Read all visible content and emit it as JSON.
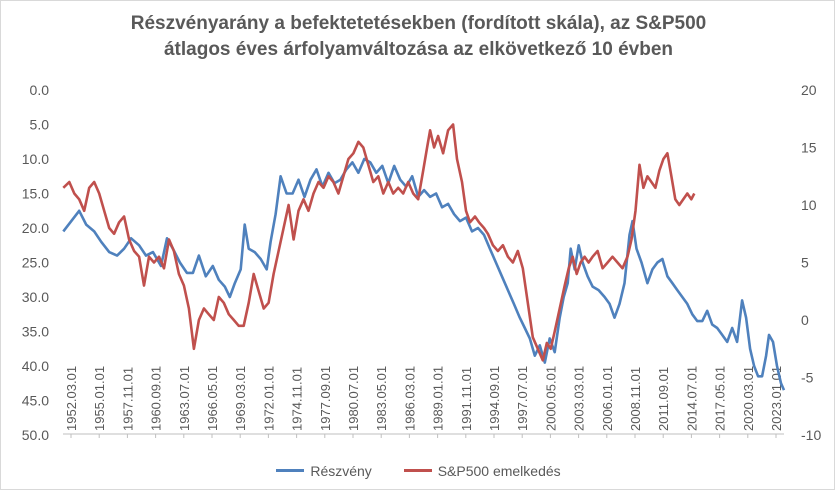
{
  "chart_data": {
    "type": "line",
    "title_line1": "Részvényarány a befektetetésekben (fordított skála),  az S&P500",
    "title_line2": "átlagos éves árfolyamváltozása az elkövetkező 10 évben",
    "x_ticks": [
      "1952.03.01",
      "1955.01.01",
      "1957.11.01",
      "1960.09.01",
      "1963.07.01",
      "1966.05.01",
      "1969.03.01",
      "1972.01.01",
      "1974.11.01",
      "1977.09.01",
      "1980.07.01",
      "1983.05.01",
      "1986.03.01",
      "1989.01.01",
      "1991.11.01",
      "1994.09.01",
      "1997.07.01",
      "2000.05.01",
      "2003.03.01",
      "2006.01.01",
      "2008.11.01",
      "2011.09.01",
      "2014.07.01",
      "2017.05.01",
      "2020.03.01",
      "2023.01.01"
    ],
    "x_range": [
      1952.17,
      2024.5
    ],
    "y_left": {
      "ticks": [
        "0.0",
        "5.0",
        "10.0",
        "15.0",
        "20.0",
        "25.0",
        "30.0",
        "35.0",
        "40.0",
        "45.0",
        "50.0"
      ],
      "range": [
        0,
        50
      ],
      "inverted": true
    },
    "y_right": {
      "ticks": [
        "20",
        "15",
        "10",
        "5",
        "0",
        "-5",
        "-10"
      ],
      "range": [
        -10,
        20
      ]
    },
    "grid": false,
    "legend_position": "bottom",
    "series": [
      {
        "name": "Részvény",
        "axis": "left",
        "color": "#4f81bd",
        "points": [
          [
            1952.2,
            20.5
          ],
          [
            1953.0,
            19.0
          ],
          [
            1953.8,
            17.5
          ],
          [
            1954.5,
            19.5
          ],
          [
            1955.3,
            20.5
          ],
          [
            1956.0,
            22.0
          ],
          [
            1956.8,
            23.5
          ],
          [
            1957.6,
            24.0
          ],
          [
            1958.3,
            23.0
          ],
          [
            1959.0,
            21.5
          ],
          [
            1959.8,
            22.5
          ],
          [
            1960.5,
            24.0
          ],
          [
            1961.2,
            23.5
          ],
          [
            1962.0,
            25.5
          ],
          [
            1962.6,
            21.5
          ],
          [
            1963.2,
            23.0
          ],
          [
            1963.9,
            25.0
          ],
          [
            1964.6,
            26.5
          ],
          [
            1965.2,
            26.5
          ],
          [
            1965.8,
            24.0
          ],
          [
            1966.5,
            27.0
          ],
          [
            1967.2,
            25.5
          ],
          [
            1967.8,
            27.5
          ],
          [
            1968.4,
            28.5
          ],
          [
            1968.9,
            30.0
          ],
          [
            1969.4,
            28.0
          ],
          [
            1970.0,
            26.0
          ],
          [
            1970.4,
            19.5
          ],
          [
            1970.8,
            23.0
          ],
          [
            1971.4,
            23.5
          ],
          [
            1972.0,
            24.5
          ],
          [
            1972.6,
            26.0
          ],
          [
            1973.0,
            22.0
          ],
          [
            1973.5,
            18.0
          ],
          [
            1974.0,
            12.5
          ],
          [
            1974.6,
            15.0
          ],
          [
            1975.2,
            15.0
          ],
          [
            1975.8,
            13.0
          ],
          [
            1976.4,
            15.5
          ],
          [
            1977.0,
            13.0
          ],
          [
            1977.6,
            11.5
          ],
          [
            1978.2,
            14.0
          ],
          [
            1978.8,
            12.0
          ],
          [
            1979.4,
            13.5
          ],
          [
            1980.0,
            13.0
          ],
          [
            1980.6,
            11.5
          ],
          [
            1981.2,
            10.5
          ],
          [
            1981.8,
            12.0
          ],
          [
            1982.4,
            10.0
          ],
          [
            1983.0,
            10.5
          ],
          [
            1983.6,
            12.0
          ],
          [
            1984.2,
            11.0
          ],
          [
            1984.8,
            13.5
          ],
          [
            1985.4,
            11.0
          ],
          [
            1986.0,
            13.0
          ],
          [
            1986.6,
            14.0
          ],
          [
            1987.2,
            12.5
          ],
          [
            1987.8,
            15.5
          ],
          [
            1988.4,
            14.5
          ],
          [
            1989.0,
            15.5
          ],
          [
            1989.6,
            15.0
          ],
          [
            1990.2,
            17.0
          ],
          [
            1990.8,
            16.5
          ],
          [
            1991.4,
            18.0
          ],
          [
            1992.0,
            19.0
          ],
          [
            1992.6,
            18.5
          ],
          [
            1993.2,
            20.5
          ],
          [
            1993.8,
            20.0
          ],
          [
            1994.4,
            21.0
          ],
          [
            1995.0,
            23.0
          ],
          [
            1995.6,
            25.0
          ],
          [
            1996.2,
            27.0
          ],
          [
            1996.8,
            29.0
          ],
          [
            1997.4,
            31.0
          ],
          [
            1998.0,
            33.0
          ],
          [
            1998.5,
            34.5
          ],
          [
            1999.0,
            36.0
          ],
          [
            1999.5,
            38.5
          ],
          [
            2000.0,
            37.0
          ],
          [
            2000.5,
            39.5
          ],
          [
            2001.0,
            36.0
          ],
          [
            2001.5,
            38.0
          ],
          [
            2002.0,
            33.0
          ],
          [
            2002.4,
            30.0
          ],
          [
            2002.8,
            28.0
          ],
          [
            2003.1,
            23.0
          ],
          [
            2003.5,
            26.0
          ],
          [
            2003.9,
            22.5
          ],
          [
            2004.3,
            25.0
          ],
          [
            2004.8,
            27.0
          ],
          [
            2005.3,
            28.5
          ],
          [
            2005.9,
            29.0
          ],
          [
            2006.5,
            30.0
          ],
          [
            2007.0,
            31.0
          ],
          [
            2007.5,
            33.0
          ],
          [
            2008.0,
            31.0
          ],
          [
            2008.5,
            28.0
          ],
          [
            2009.0,
            21.0
          ],
          [
            2009.3,
            19.0
          ],
          [
            2009.7,
            23.0
          ],
          [
            2010.2,
            25.0
          ],
          [
            2010.8,
            28.0
          ],
          [
            2011.3,
            26.0
          ],
          [
            2011.8,
            25.0
          ],
          [
            2012.3,
            24.5
          ],
          [
            2012.8,
            27.0
          ],
          [
            2013.3,
            28.0
          ],
          [
            2013.8,
            29.0
          ],
          [
            2014.3,
            30.0
          ],
          [
            2014.8,
            31.0
          ],
          [
            2015.3,
            32.5
          ],
          [
            2015.8,
            33.5
          ],
          [
            2016.3,
            33.5
          ],
          [
            2016.8,
            32.0
          ],
          [
            2017.3,
            34.0
          ],
          [
            2017.8,
            34.5
          ],
          [
            2018.3,
            35.5
          ],
          [
            2018.8,
            36.5
          ],
          [
            2019.3,
            34.5
          ],
          [
            2019.8,
            36.5
          ],
          [
            2020.3,
            30.5
          ],
          [
            2020.7,
            33.0
          ],
          [
            2021.1,
            37.5
          ],
          [
            2021.5,
            40.0
          ],
          [
            2021.9,
            41.5
          ],
          [
            2022.3,
            41.5
          ],
          [
            2022.7,
            38.5
          ],
          [
            2023.0,
            35.5
          ],
          [
            2023.4,
            36.5
          ],
          [
            2023.8,
            40.0
          ],
          [
            2024.2,
            42.5
          ],
          [
            2024.5,
            43.5
          ]
        ]
      },
      {
        "name": "S&P500 emelkedés",
        "axis": "right",
        "color": "#c0504d",
        "points": [
          [
            1952.2,
            11.5
          ],
          [
            1952.8,
            12.0
          ],
          [
            1953.3,
            11.0
          ],
          [
            1953.8,
            10.5
          ],
          [
            1954.3,
            9.5
          ],
          [
            1954.8,
            11.5
          ],
          [
            1955.3,
            12.0
          ],
          [
            1955.8,
            11.0
          ],
          [
            1956.3,
            9.5
          ],
          [
            1956.8,
            8.0
          ],
          [
            1957.3,
            7.5
          ],
          [
            1957.8,
            8.5
          ],
          [
            1958.3,
            9.0
          ],
          [
            1958.8,
            7.0
          ],
          [
            1959.3,
            6.0
          ],
          [
            1959.8,
            5.5
          ],
          [
            1960.3,
            3.0
          ],
          [
            1960.8,
            5.5
          ],
          [
            1961.3,
            5.0
          ],
          [
            1961.8,
            5.5
          ],
          [
            1962.3,
            4.5
          ],
          [
            1962.8,
            7.0
          ],
          [
            1963.3,
            6.0
          ],
          [
            1963.8,
            4.0
          ],
          [
            1964.3,
            3.0
          ],
          [
            1964.8,
            1.0
          ],
          [
            1965.3,
            -2.5
          ],
          [
            1965.8,
            0.0
          ],
          [
            1966.3,
            1.0
          ],
          [
            1966.8,
            0.5
          ],
          [
            1967.3,
            0.0
          ],
          [
            1967.8,
            2.0
          ],
          [
            1968.3,
            1.5
          ],
          [
            1968.8,
            0.5
          ],
          [
            1969.3,
            0.0
          ],
          [
            1969.8,
            -0.5
          ],
          [
            1970.3,
            -0.5
          ],
          [
            1970.8,
            1.5
          ],
          [
            1971.3,
            4.0
          ],
          [
            1971.8,
            2.5
          ],
          [
            1972.3,
            1.0
          ],
          [
            1972.8,
            1.5
          ],
          [
            1973.3,
            4.0
          ],
          [
            1973.8,
            6.0
          ],
          [
            1974.3,
            8.0
          ],
          [
            1974.8,
            10.0
          ],
          [
            1975.3,
            7.0
          ],
          [
            1975.8,
            9.5
          ],
          [
            1976.3,
            10.5
          ],
          [
            1976.8,
            9.5
          ],
          [
            1977.3,
            11.0
          ],
          [
            1977.8,
            12.0
          ],
          [
            1978.3,
            11.5
          ],
          [
            1978.8,
            12.5
          ],
          [
            1979.3,
            12.0
          ],
          [
            1979.8,
            11.0
          ],
          [
            1980.3,
            12.5
          ],
          [
            1980.8,
            14.0
          ],
          [
            1981.3,
            14.5
          ],
          [
            1981.8,
            15.5
          ],
          [
            1982.3,
            15.0
          ],
          [
            1982.8,
            13.5
          ],
          [
            1983.3,
            12.0
          ],
          [
            1983.8,
            12.5
          ],
          [
            1984.3,
            11.0
          ],
          [
            1984.8,
            12.0
          ],
          [
            1985.3,
            11.0
          ],
          [
            1985.8,
            11.5
          ],
          [
            1986.3,
            11.0
          ],
          [
            1986.8,
            12.0
          ],
          [
            1987.3,
            11.0
          ],
          [
            1987.8,
            10.5
          ],
          [
            1988.3,
            13.0
          ],
          [
            1988.7,
            15.0
          ],
          [
            1989.0,
            16.5
          ],
          [
            1989.4,
            15.0
          ],
          [
            1989.8,
            16.0
          ],
          [
            1990.3,
            14.5
          ],
          [
            1990.8,
            16.5
          ],
          [
            1991.3,
            17.0
          ],
          [
            1991.7,
            14.0
          ],
          [
            1992.2,
            12.0
          ],
          [
            1992.6,
            9.5
          ],
          [
            1993.0,
            8.5
          ],
          [
            1993.5,
            9.0
          ],
          [
            1993.9,
            8.5
          ],
          [
            1994.4,
            8.0
          ],
          [
            1994.8,
            7.5
          ],
          [
            1995.3,
            6.5
          ],
          [
            1995.8,
            6.0
          ],
          [
            1996.3,
            6.5
          ],
          [
            1996.8,
            5.5
          ],
          [
            1997.3,
            5.0
          ],
          [
            1997.8,
            6.0
          ],
          [
            1998.3,
            4.5
          ],
          [
            1998.8,
            1.5
          ],
          [
            1999.3,
            -1.5
          ],
          [
            1999.8,
            -2.5
          ],
          [
            2000.3,
            -3.5
          ],
          [
            2000.7,
            -2.0
          ],
          [
            2001.1,
            -2.5
          ],
          [
            2001.5,
            -1.0
          ],
          [
            2002.0,
            1.0
          ],
          [
            2002.5,
            3.0
          ],
          [
            2002.9,
            4.5
          ],
          [
            2003.3,
            5.5
          ],
          [
            2003.7,
            4.0
          ],
          [
            2004.1,
            5.0
          ],
          [
            2004.5,
            5.5
          ],
          [
            2004.9,
            5.0
          ],
          [
            2005.3,
            5.5
          ],
          [
            2005.8,
            6.0
          ],
          [
            2006.3,
            4.5
          ],
          [
            2006.8,
            5.0
          ],
          [
            2007.3,
            5.5
          ],
          [
            2007.8,
            5.0
          ],
          [
            2008.3,
            4.5
          ],
          [
            2008.8,
            5.5
          ],
          [
            2009.2,
            7.0
          ],
          [
            2009.6,
            9.5
          ],
          [
            2010.0,
            13.5
          ],
          [
            2010.4,
            11.5
          ],
          [
            2010.8,
            12.5
          ],
          [
            2011.2,
            12.0
          ],
          [
            2011.6,
            11.5
          ],
          [
            2012.0,
            13.0
          ],
          [
            2012.4,
            14.0
          ],
          [
            2012.8,
            14.5
          ],
          [
            2013.2,
            12.5
          ],
          [
            2013.6,
            10.5
          ],
          [
            2014.0,
            10.0
          ],
          [
            2014.4,
            10.5
          ],
          [
            2014.8,
            11.0
          ],
          [
            2015.2,
            10.5
          ],
          [
            2015.5,
            11.0
          ]
        ]
      }
    ]
  }
}
